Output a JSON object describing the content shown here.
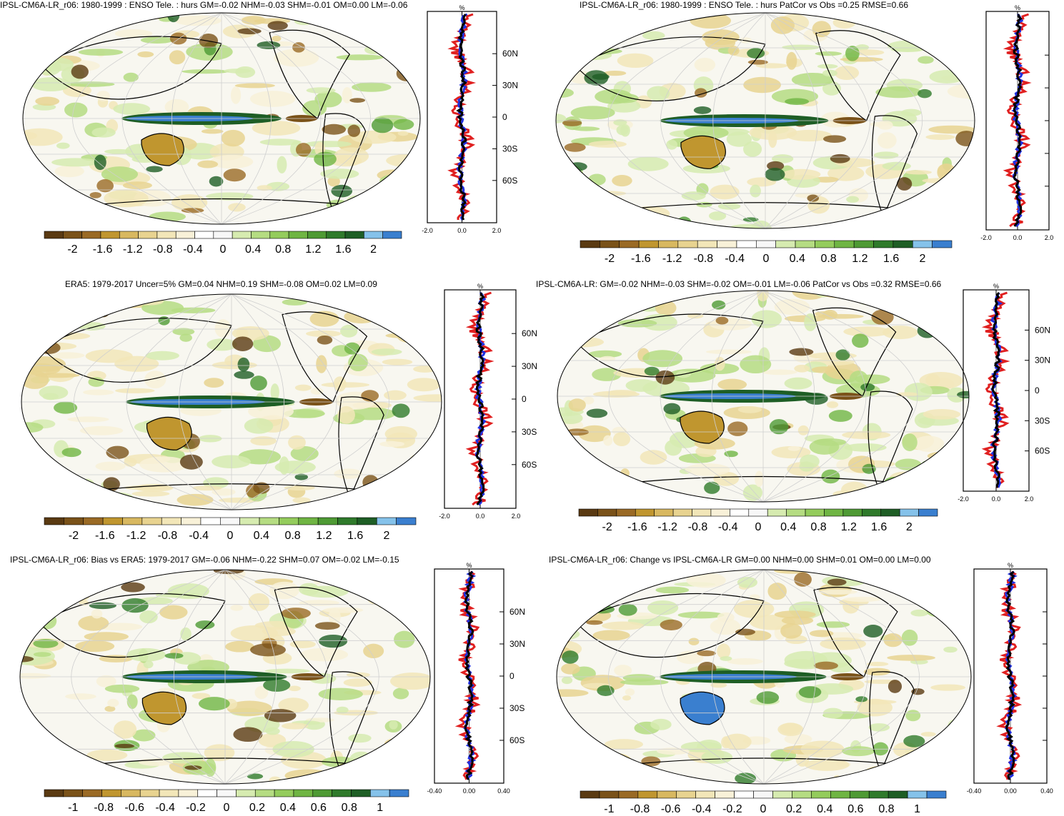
{
  "palette": [
    "#5a3a12",
    "#7a5219",
    "#9a6a25",
    "#c0962f",
    "#d8b860",
    "#e8d390",
    "#f2e6b8",
    "#f8f1d8",
    "#ffffff",
    "#f7f7f7",
    "#d6ebb0",
    "#b5dc82",
    "#94cc5c",
    "#6fb543",
    "#4e9a34",
    "#2f7a2b",
    "#1e5e25",
    "#85c2ea",
    "#3a7fcf"
  ],
  "colorbar_lists": {
    "pct": [
      "-2",
      "-1.6",
      "-1.2",
      "-0.8",
      "-0.4",
      "0",
      "0.4",
      "0.8",
      "1.2",
      "1.6",
      "2"
    ],
    "bias": [
      "-1",
      "-0.8",
      "-0.6",
      "-0.4",
      "-0.2",
      "0",
      "0.2",
      "0.4",
      "0.6",
      "0.8",
      "1"
    ]
  },
  "lat_labels": [
    "60N",
    "30N",
    "0",
    "30S",
    "60S"
  ],
  "panels": [
    {
      "title": "IPSL-CM6A-LR_r06: 1980-1999 : ENSO Tele. : hurs GM=-0.02 NHM=-0.03 SHM=-0.01 OM=0.00 LM=-0.06",
      "unit": "%",
      "zonal_ticks": [
        "-2.0",
        "0.0",
        "2.0"
      ],
      "colorbar": [
        "-2",
        "-1.6",
        "-1.2",
        "-0.8",
        "-0.4",
        "0",
        "0.4",
        "0.8",
        "1.2",
        "1.6",
        "2"
      ]
    },
    {
      "title": "IPSL-CM6A-LR_r06: 1980-1999 : ENSO Tele. : hurs PatCor vs Obs =0.25 RMSE=0.66",
      "unit": "%",
      "zonal_ticks": [
        "-2.0",
        "0.0",
        "2.0"
      ],
      "colorbar": [
        "-2",
        "-1.6",
        "-1.2",
        "-0.8",
        "-0.4",
        "0",
        "0.4",
        "0.8",
        "1.2",
        "1.6",
        "2"
      ]
    },
    {
      "title": "ERA5: 1979-2017 Uncer=5% GM=0.04 NHM=0.19 SHM=-0.08 OM=0.02 LM=0.09",
      "unit": "%",
      "zonal_ticks": [
        "-2.0",
        "0.0",
        "2.0"
      ],
      "colorbar": [
        "-2",
        "-1.6",
        "-1.2",
        "-0.8",
        "-0.4",
        "0",
        "0.4",
        "0.8",
        "1.2",
        "1.6",
        "2"
      ]
    },
    {
      "title": "IPSL-CM6A-LR: GM=-0.02 NHM=-0.03 SHM=-0.02 OM=-0.01 LM=-0.06 PatCor vs Obs =0.32 RMSE=0.66",
      "unit": "%",
      "zonal_ticks": [
        "-2.0",
        "0.0",
        "2.0"
      ],
      "colorbar": [
        "-2",
        "-1.6",
        "-1.2",
        "-0.8",
        "-0.4",
        "0",
        "0.4",
        "0.8",
        "1.2",
        "1.6",
        "2"
      ]
    },
    {
      "title": "IPSL-CM6A-LR_r06: Bias vs ERA5: 1979-2017 GM=-0.06 NHM=-0.22 SHM=0.07 OM=-0.02 LM=-0.15",
      "unit": "%",
      "zonal_ticks": [
        "-0.40",
        "0.00",
        "0.40"
      ],
      "colorbar": [
        "-1",
        "-0.8",
        "-0.6",
        "-0.4",
        "-0.2",
        "0",
        "0.2",
        "0.4",
        "0.6",
        "0.8",
        "1"
      ]
    },
    {
      "title": "IPSL-CM6A-LR_r06: Change vs IPSL-CM6A-LR GM=0.00 NHM=0.00 SHM=0.01 OM=0.00 LM=0.00",
      "unit": "%",
      "zonal_ticks": [
        "-0.40",
        "0.00",
        "0.40"
      ],
      "colorbar": [
        "-1",
        "-0.8",
        "-0.6",
        "-0.4",
        "-0.2",
        "0",
        "0.2",
        "0.4",
        "0.6",
        "0.8",
        "1"
      ]
    }
  ]
}
